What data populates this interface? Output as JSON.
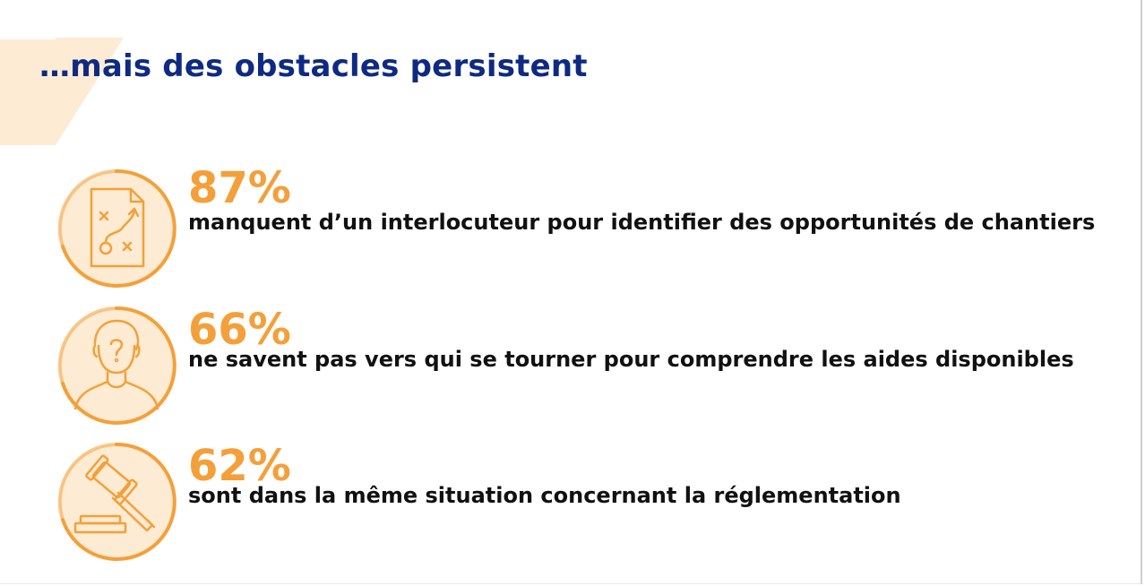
{
  "title": "…mais des obstacles persistent",
  "colors": {
    "title": "#0e2a82",
    "accent": "#f4a03a",
    "accent_light": "#fdebd3",
    "text": "#111111"
  },
  "stats": [
    {
      "value": "87%",
      "text": "manquent d’un interlocuteur pour identifier des opportunités de chantiers",
      "icon": "strategy-plan-icon"
    },
    {
      "value": "66%",
      "text": "ne savent pas vers qui se tourner pour comprendre les aides disponibles",
      "icon": "confused-person-icon"
    },
    {
      "value": "62%",
      "text": "sont dans la même situation concernant la réglementation",
      "icon": "gavel-icon"
    }
  ]
}
